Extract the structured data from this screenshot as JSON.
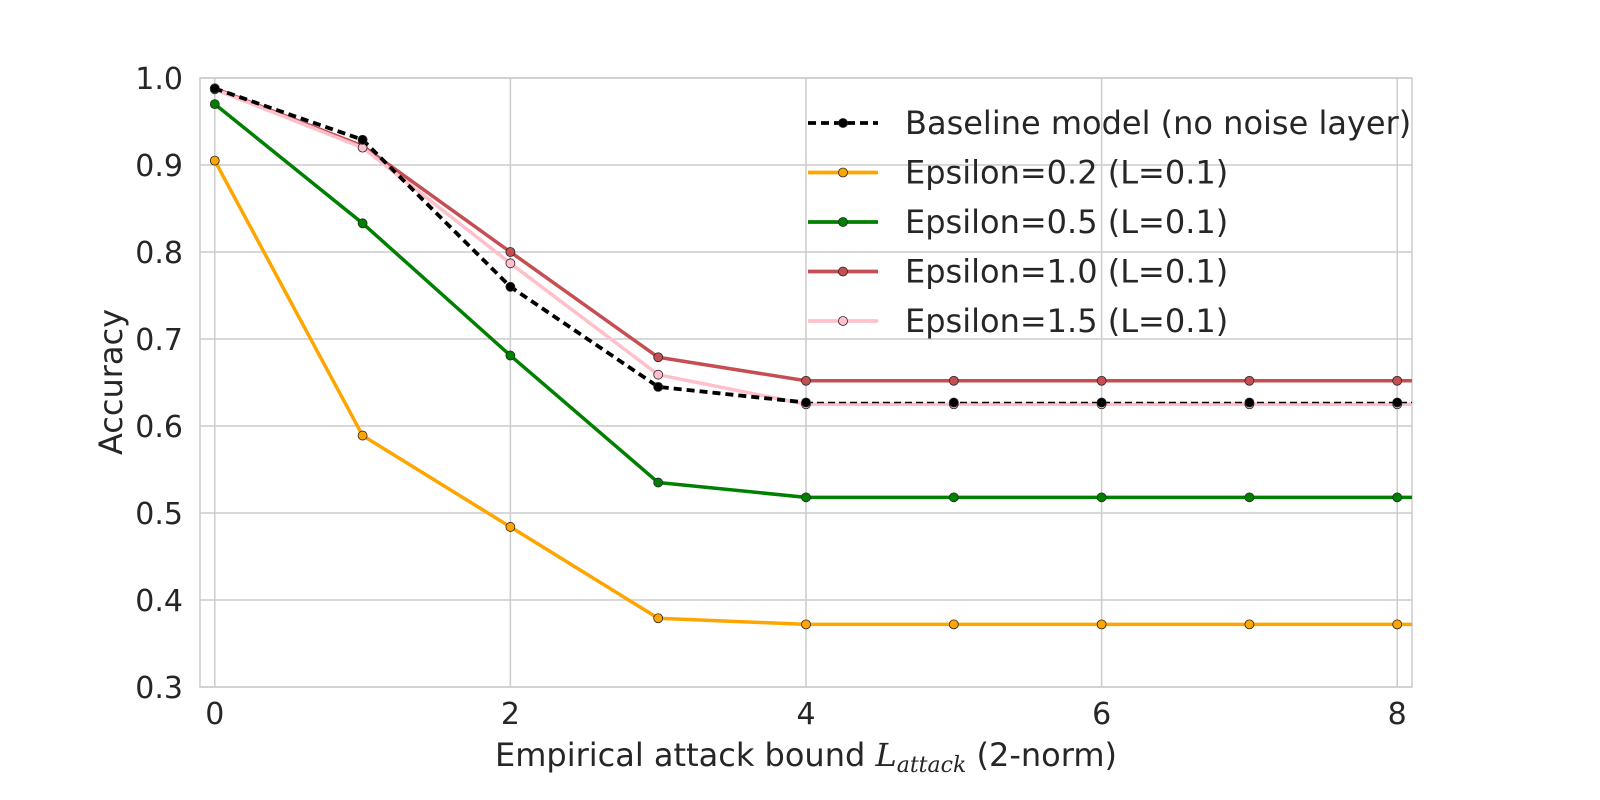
{
  "chart_data": {
    "type": "line",
    "xlabel": {
      "prefix": "Empirical attack bound ",
      "symbol": "L",
      "subscript": "attack",
      "suffix": " (2-norm)"
    },
    "ylabel": "Accuracy",
    "xlim": [
      -0.1,
      8.1
    ],
    "ylim": [
      0.3,
      1.0
    ],
    "xticks": [
      0,
      2,
      4,
      6,
      8
    ],
    "yticks": [
      0.3,
      0.4,
      0.5,
      0.6,
      0.7,
      0.8,
      0.9,
      1.0
    ],
    "ytick_labels": [
      "0.3",
      "0.4",
      "0.5",
      "0.6",
      "0.7",
      "0.8",
      "0.9",
      "1.0"
    ],
    "grid": true,
    "legend_position": "top-right",
    "x": [
      0,
      1,
      2,
      3,
      4,
      5,
      6,
      7,
      8
    ],
    "series": [
      {
        "name": "Epsilon=0.2 (L=0.1)",
        "values": [
          0.905,
          0.589,
          0.484,
          0.379,
          0.372,
          0.372,
          0.372,
          0.372,
          0.372
        ],
        "color": "#ffa500",
        "marker_color": "#ffa500",
        "style": "solid"
      },
      {
        "name": "Epsilon=0.5 (L=0.1)",
        "values": [
          0.97,
          0.833,
          0.681,
          0.535,
          0.518,
          0.518,
          0.518,
          0.518,
          0.518
        ],
        "color": "#008000",
        "marker_color": "#008000",
        "style": "solid"
      },
      {
        "name": "Epsilon=1.0 (L=0.1)",
        "values": [
          0.988,
          0.922,
          0.8,
          0.679,
          0.652,
          0.652,
          0.652,
          0.652,
          0.652
        ],
        "color": "#c44e52",
        "marker_color": "#c44e52",
        "style": "solid"
      },
      {
        "name": "Epsilon=1.5 (L=0.1)",
        "values": [
          0.987,
          0.92,
          0.787,
          0.659,
          0.625,
          0.625,
          0.625,
          0.625,
          0.625
        ],
        "color": "#ffc0cb",
        "marker_color": "#ffc0cb",
        "style": "solid"
      },
      {
        "name": "Baseline model (no noise layer)",
        "values": [
          0.988,
          0.929,
          0.76,
          0.645,
          0.627,
          0.627,
          0.627,
          0.627,
          0.627
        ],
        "color": "#000000",
        "marker_color": "#000000",
        "style": "dashed"
      }
    ],
    "legend_order": [
      4,
      0,
      1,
      2,
      3
    ]
  }
}
